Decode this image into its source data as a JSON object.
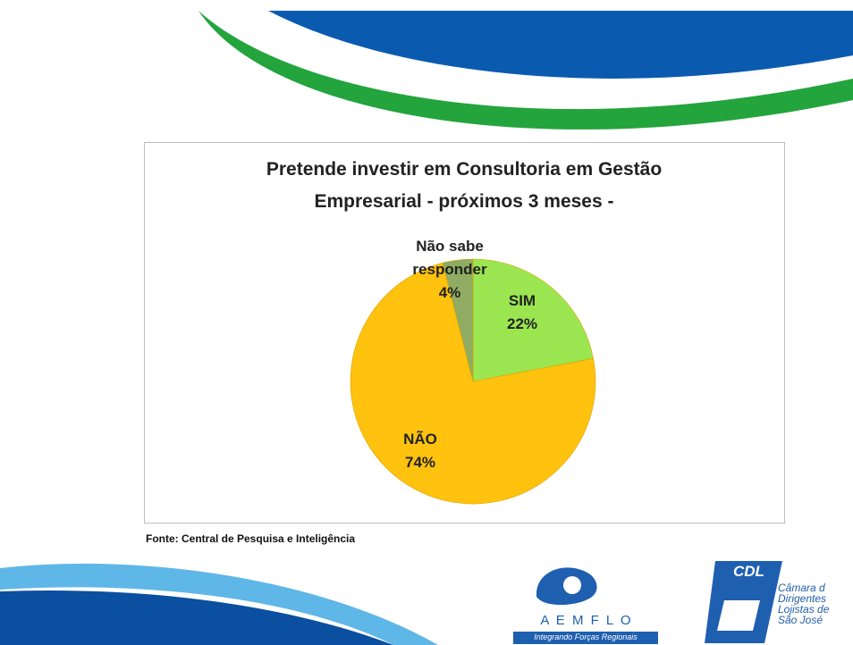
{
  "chart_data": {
    "type": "pie",
    "title": "Pretende investir em Consultoria em Gestão Empresarial - próximos 3 meses -",
    "categories": [
      "SIM",
      "NÃO",
      "Não sabe responder"
    ],
    "values": [
      22,
      74,
      4
    ],
    "value_labels": [
      "22%",
      "74%",
      "4%"
    ],
    "colors": [
      "#9be650",
      "#ffc20e",
      "#8fac62"
    ]
  },
  "source": "Fonte: Central de Pesquisa e Inteligência",
  "logos": {
    "aemflo": {
      "name": "A E M F L O",
      "slogan": "Integrando Forças Regionais"
    },
    "cdl": {
      "name": "CDL",
      "lines": [
        "Câmara d",
        "Dirigentes",
        "Lojistas de",
        "São José"
      ]
    }
  }
}
